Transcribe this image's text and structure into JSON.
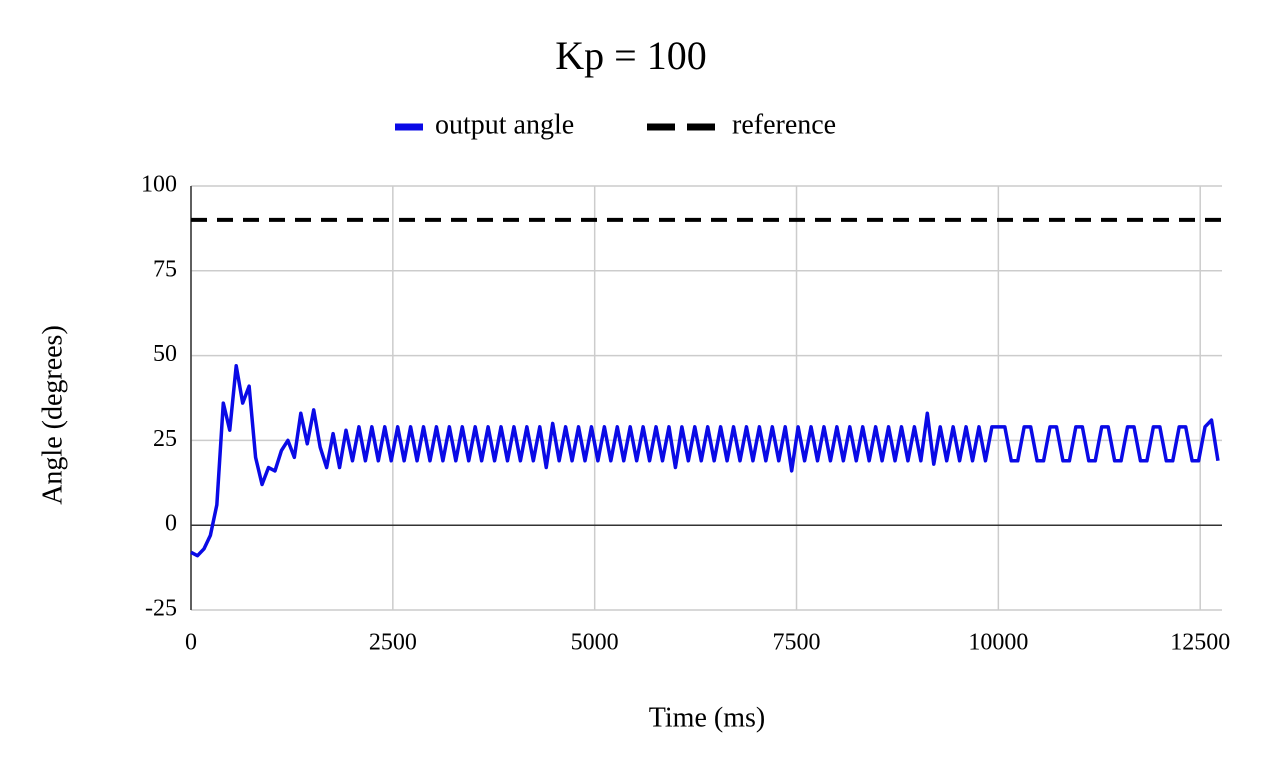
{
  "chart_data": {
    "type": "line",
    "title": "Kp = 100",
    "x_label": "Time (ms)",
    "y_label": "Angle (degrees)",
    "xlim": [
      0,
      12770
    ],
    "xticks": [
      0,
      2500,
      5000,
      7500,
      10000,
      12500
    ],
    "ylim": [
      -25,
      100
    ],
    "yticks": [
      -25,
      0,
      25,
      50,
      75,
      100
    ],
    "grid": true,
    "legend": "top",
    "series": [
      {
        "name": "output angle",
        "color": "#0a0ae6",
        "dash": false,
        "x": [
          0,
          80,
          160,
          240,
          320,
          400,
          480,
          560,
          640,
          720,
          800,
          880,
          960,
          1040,
          1120,
          1200,
          1280,
          1360,
          1440,
          1520,
          1600,
          1680,
          1760,
          1840,
          1920,
          2000,
          2080,
          2160,
          2240,
          2320,
          2400,
          2480,
          2560,
          2640,
          2720,
          2800,
          2880,
          2960,
          3040,
          3120,
          3200,
          3280,
          3360,
          3440,
          3520,
          3600,
          3680,
          3760,
          3840,
          3920,
          4000,
          4080,
          4160,
          4240,
          4320,
          4400,
          4480,
          4560,
          4640,
          4720,
          4800,
          4880,
          4960,
          5040,
          5120,
          5200,
          5280,
          5360,
          5440,
          5520,
          5600,
          5680,
          5760,
          5840,
          5920,
          6000,
          6080,
          6160,
          6240,
          6320,
          6400,
          6480,
          6560,
          6640,
          6720,
          6800,
          6880,
          6960,
          7040,
          7120,
          7200,
          7280,
          7360,
          7440,
          7520,
          7600,
          7680,
          7760,
          7840,
          7920,
          8000,
          8080,
          8160,
          8240,
          8320,
          8400,
          8480,
          8560,
          8640,
          8720,
          8800,
          8880,
          8960,
          9040,
          9120,
          9200,
          9280,
          9360,
          9440,
          9520,
          9600,
          9680,
          9760,
          9840,
          9920,
          10000,
          10080,
          10160,
          10240,
          10320,
          10400,
          10480,
          10560,
          10640,
          10720,
          10800,
          10880,
          10960,
          11040,
          11120,
          11200,
          11280,
          11360,
          11440,
          11520,
          11600,
          11680,
          11760,
          11840,
          11920,
          12000,
          12080,
          12160,
          12240,
          12320,
          12400,
          12480,
          12560,
          12640,
          12720
        ],
        "values": [
          -8,
          -9,
          -7,
          -3,
          6,
          36,
          28,
          47,
          36,
          41,
          20,
          12,
          17,
          16,
          22,
          25,
          20,
          33,
          24,
          34,
          23,
          17,
          27,
          17,
          28,
          19,
          29,
          19,
          29,
          19,
          29,
          19,
          29,
          19,
          29,
          19,
          29,
          19,
          29,
          19,
          29,
          19,
          29,
          19,
          29,
          19,
          29,
          19,
          29,
          19,
          29,
          19,
          29,
          19,
          29,
          17,
          30,
          19,
          29,
          19,
          29,
          19,
          29,
          19,
          29,
          19,
          29,
          19,
          29,
          19,
          29,
          19,
          29,
          19,
          29,
          17,
          29,
          19,
          29,
          19,
          29,
          19,
          29,
          19,
          29,
          19,
          29,
          19,
          29,
          19,
          29,
          19,
          29,
          16,
          29,
          19,
          29,
          19,
          29,
          19,
          29,
          19,
          29,
          19,
          29,
          19,
          29,
          19,
          29,
          19,
          29,
          19,
          29,
          19,
          33,
          18,
          29,
          19,
          29,
          19,
          29,
          19,
          29,
          19,
          29,
          29,
          29,
          19,
          19,
          29,
          29,
          19,
          19,
          29,
          29,
          19,
          19,
          29,
          29,
          19,
          19,
          29,
          29,
          19,
          19,
          29,
          29,
          19,
          19,
          29,
          29,
          19,
          19,
          29,
          29,
          19,
          19,
          29,
          31,
          19
        ]
      },
      {
        "name": "reference",
        "color": "#000000",
        "dash": true,
        "x": [
          0,
          12770
        ],
        "values": [
          90,
          90
        ]
      }
    ]
  }
}
